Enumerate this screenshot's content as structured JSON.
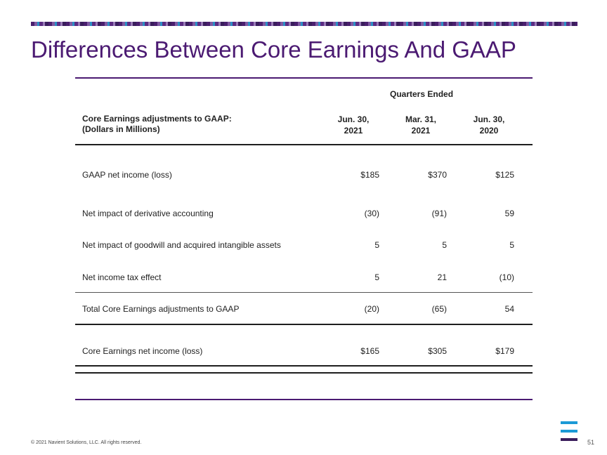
{
  "slide": {
    "title": "Differences Between Core Earnings And GAAP",
    "footer": "© 2021 Navient Solutions, LLC. All rights reserved.",
    "page_number": "51"
  },
  "table": {
    "group_header": "Quarters Ended",
    "row_header_line1": "Core Earnings adjustments to GAAP:",
    "row_header_line2": "(Dollars in Millions)",
    "columns": [
      {
        "line1": "Jun. 30,",
        "line2": "2021"
      },
      {
        "line1": "Mar. 31,",
        "line2": "2021"
      },
      {
        "line1": "Jun. 30,",
        "line2": "2020"
      }
    ],
    "rows": [
      {
        "label": "GAAP net income (loss)",
        "values": [
          "$185",
          "$370",
          "$125"
        ]
      },
      {
        "label": "Net impact of derivative accounting",
        "values": [
          "(30)",
          "(91)",
          "59"
        ]
      },
      {
        "label": "Net impact of goodwill and acquired intangible assets",
        "values": [
          "5",
          "5",
          "5"
        ]
      },
      {
        "label": "Net income tax effect",
        "values": [
          "5",
          "21",
          "(10)"
        ]
      },
      {
        "label": "Total Core Earnings adjustments to GAAP",
        "values": [
          "(20)",
          "(65)",
          "54"
        ]
      },
      {
        "label": "Core Earnings net income (loss)",
        "values": [
          "$165",
          "$305",
          "$179"
        ]
      }
    ]
  },
  "colors": {
    "brand_purple": "#4b1a72",
    "logo_blue": "#1b9ad6",
    "logo_dark": "#3a1d5c"
  }
}
